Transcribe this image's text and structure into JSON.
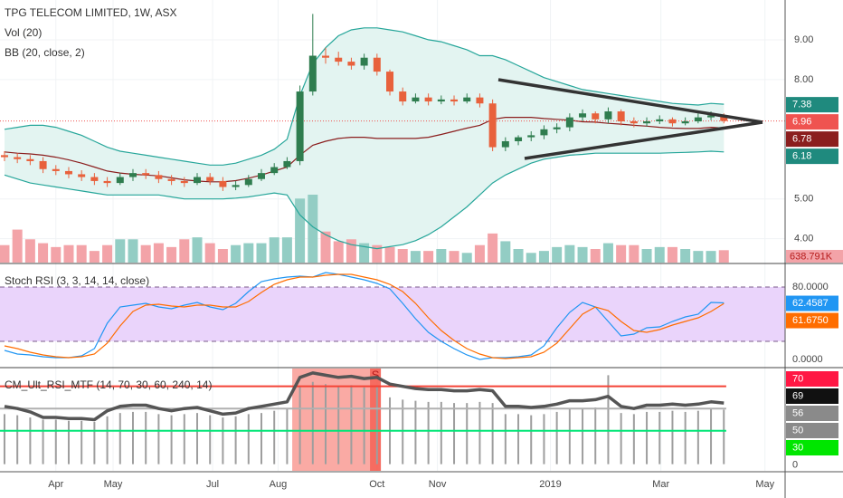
{
  "chart_data": [
    {
      "type": "candlestick",
      "title": "TPG TELECOM LIMITED, 1W, ASX",
      "legend_lines": [
        "Vol (20)",
        "BB (20, close, 2)"
      ],
      "open": [
        6.1,
        6.05,
        6.0,
        5.95,
        5.75,
        5.7,
        5.62,
        5.55,
        5.45,
        5.4,
        5.55,
        5.65,
        5.6,
        5.5,
        5.45,
        5.4,
        5.55,
        5.45,
        5.3,
        5.35,
        5.5,
        5.65,
        5.8,
        5.95,
        7.7,
        8.6,
        8.55,
        8.45,
        8.35,
        8.55,
        8.2,
        7.7,
        7.45,
        7.55,
        7.45,
        7.5,
        7.45,
        7.55,
        7.4,
        6.3,
        6.45,
        6.55,
        6.6,
        6.75,
        6.8,
        7.05,
        7.15,
        7.0,
        7.2,
        6.95,
        6.9,
        6.95,
        7.0,
        6.9,
        6.95,
        7.05,
        7.1
      ],
      "high": [
        6.2,
        6.15,
        6.1,
        6.05,
        5.85,
        5.8,
        5.72,
        5.65,
        5.55,
        5.65,
        5.75,
        5.75,
        5.7,
        5.6,
        5.55,
        5.65,
        5.65,
        5.55,
        5.45,
        5.6,
        5.75,
        5.9,
        6.05,
        7.85,
        9.65,
        8.8,
        8.7,
        8.55,
        8.65,
        8.65,
        8.25,
        7.8,
        7.65,
        7.65,
        7.6,
        7.6,
        7.65,
        7.65,
        7.5,
        6.55,
        6.6,
        6.7,
        6.85,
        6.9,
        7.15,
        7.25,
        7.2,
        7.3,
        7.25,
        7.05,
        7.05,
        7.1,
        7.05,
        7.05,
        7.15,
        7.2,
        7.15
      ],
      "low": [
        5.95,
        5.9,
        5.85,
        5.65,
        5.6,
        5.52,
        5.45,
        5.35,
        5.3,
        5.35,
        5.45,
        5.5,
        5.4,
        5.35,
        5.3,
        5.35,
        5.35,
        5.2,
        5.22,
        5.3,
        5.45,
        5.6,
        5.75,
        5.85,
        7.6,
        8.4,
        8.35,
        8.25,
        8.25,
        8.1,
        7.6,
        7.35,
        7.4,
        7.35,
        7.38,
        7.35,
        7.4,
        7.3,
        6.2,
        6.2,
        6.35,
        6.45,
        6.5,
        6.65,
        6.7,
        6.95,
        6.9,
        6.9,
        6.85,
        6.8,
        6.82,
        6.88,
        6.82,
        6.85,
        6.9,
        6.98,
        6.9
      ],
      "close": [
        6.05,
        6.0,
        5.95,
        5.75,
        5.7,
        5.62,
        5.55,
        5.45,
        5.4,
        5.55,
        5.65,
        5.6,
        5.5,
        5.45,
        5.4,
        5.55,
        5.45,
        5.3,
        5.35,
        5.5,
        5.65,
        5.8,
        5.95,
        7.7,
        8.6,
        8.55,
        8.45,
        8.35,
        8.55,
        8.2,
        7.7,
        7.45,
        7.55,
        7.45,
        7.5,
        7.45,
        7.55,
        7.4,
        6.3,
        6.45,
        6.55,
        6.6,
        6.75,
        6.8,
        7.05,
        7.15,
        7.0,
        7.2,
        6.95,
        6.9,
        6.95,
        7.0,
        6.9,
        6.95,
        7.05,
        7.1,
        6.96
      ],
      "up_color": "#2f7d4f",
      "down_color": "#e8613c",
      "volume": {
        "values": [
          900000,
          1700000,
          1200000,
          1000000,
          800000,
          900000,
          900000,
          600000,
          900000,
          1200000,
          1200000,
          900000,
          1000000,
          800000,
          1200000,
          1300000,
          1000000,
          700000,
          900000,
          1000000,
          1000000,
          1300000,
          1300000,
          3300000,
          3500000,
          1600000,
          1100000,
          1200000,
          1000000,
          900000,
          800000,
          700000,
          600000,
          600000,
          700000,
          600000,
          500000,
          900000,
          1500000,
          1100000,
          700000,
          500000,
          600000,
          800000,
          900000,
          800000,
          700000,
          1000000,
          900000,
          900000,
          700000,
          800000,
          800000,
          700000,
          600000,
          600000,
          638791
        ],
        "last_label": "638.791K",
        "up_color": "#93cdc4",
        "down_color": "#f3a3a8"
      },
      "bands": [
        {
          "color": "#26a69a",
          "values": [
            6.75,
            6.8,
            6.85,
            6.85,
            6.8,
            6.7,
            6.6,
            6.45,
            6.3,
            6.2,
            6.15,
            6.1,
            6.05,
            6.0,
            5.95,
            5.9,
            5.85,
            5.85,
            5.9,
            6.0,
            6.1,
            6.25,
            6.5,
            7.6,
            8.4,
            8.8,
            9.1,
            9.25,
            9.3,
            9.3,
            9.25,
            9.2,
            9.1,
            9.0,
            8.95,
            8.85,
            8.75,
            8.6,
            8.6,
            8.5,
            8.35,
            8.2,
            8.05,
            7.95,
            7.85,
            7.75,
            7.7,
            7.65,
            7.6,
            7.55,
            7.5,
            7.45,
            7.4,
            7.38,
            7.36,
            7.4,
            7.38
          ]
        },
        {
          "color": "#8b1e1e",
          "values": [
            6.18,
            6.15,
            6.13,
            6.1,
            6.05,
            5.98,
            5.9,
            5.8,
            5.7,
            5.65,
            5.62,
            5.6,
            5.58,
            5.53,
            5.48,
            5.45,
            5.43,
            5.43,
            5.46,
            5.52,
            5.6,
            5.7,
            5.8,
            6.1,
            6.35,
            6.45,
            6.52,
            6.55,
            6.55,
            6.52,
            6.52,
            6.52,
            6.52,
            6.55,
            6.62,
            6.7,
            6.78,
            6.85,
            7.0,
            7.05,
            7.05,
            7.05,
            7.02,
            7.0,
            6.98,
            6.94,
            6.93,
            6.9,
            6.88,
            6.85,
            6.83,
            6.8,
            6.78,
            6.77,
            6.77,
            6.8,
            6.78
          ]
        },
        {
          "color": "#26a69a",
          "values": [
            5.6,
            5.5,
            5.4,
            5.35,
            5.3,
            5.25,
            5.2,
            5.15,
            5.1,
            5.1,
            5.1,
            5.1,
            5.1,
            5.05,
            5.0,
            5.0,
            5.0,
            5.0,
            5.02,
            5.05,
            5.1,
            5.15,
            5.1,
            4.6,
            4.3,
            4.1,
            3.95,
            3.85,
            3.8,
            3.75,
            3.8,
            3.85,
            3.95,
            4.1,
            4.3,
            4.55,
            4.8,
            5.1,
            5.4,
            5.6,
            5.75,
            5.9,
            6.0,
            6.05,
            6.1,
            6.12,
            6.15,
            6.15,
            6.15,
            6.15,
            6.15,
            6.15,
            6.16,
            6.17,
            6.18,
            6.2,
            6.18
          ]
        }
      ],
      "band_fill": "#e3f4f1",
      "ylim": [
        3.4,
        10.0
      ],
      "yticks": [
        {
          "value": 9,
          "label": "9.00"
        },
        {
          "value": 8,
          "label": "8.00"
        },
        {
          "value": 5,
          "label": "5.00"
        },
        {
          "value": 4,
          "label": "4.00"
        }
      ],
      "price_labels": [
        {
          "value": 7.38,
          "label": "7.38",
          "color": "#1f8a7e"
        },
        {
          "value": 6.96,
          "label": "6.96",
          "color": "#ef5350"
        },
        {
          "value": 6.78,
          "label": "6.78",
          "color": "#8b1e1e"
        },
        {
          "value": 6.18,
          "label": "6.18",
          "color": "#1f8a7e"
        }
      ],
      "xlim": [
        -0.35,
        60.77
      ],
      "xticks": [
        {
          "value": 4.0,
          "label": "Apr"
        },
        {
          "value": 8.45,
          "label": "May"
        },
        {
          "value": 16.2,
          "label": "Jul"
        },
        {
          "value": 21.3,
          "label": "Aug"
        },
        {
          "value": 29.0,
          "label": "Oct"
        },
        {
          "value": 33.7,
          "label": "Nov"
        },
        {
          "value": 42.5,
          "label": "2019"
        },
        {
          "value": 51.1,
          "label": "Mar"
        },
        {
          "value": 59.2,
          "label": "May"
        }
      ]
    },
    {
      "type": "line",
      "title": "Stoch RSI (3, 3, 14, 14, close)",
      "series": [
        {
          "color": "#2196f3",
          "values": [
            10,
            6,
            5,
            3,
            2,
            2,
            4,
            12,
            40,
            58,
            60,
            62,
            58,
            56,
            60,
            63,
            58,
            55,
            62,
            75,
            86,
            89,
            91,
            92,
            91,
            96,
            94,
            91,
            88,
            84,
            78,
            62,
            45,
            30,
            20,
            12,
            5,
            0,
            2,
            2,
            3,
            5,
            15,
            35,
            52,
            63,
            58,
            42,
            26,
            28,
            35,
            36,
            42,
            47,
            50,
            63,
            62.4587
          ]
        },
        {
          "color": "#ff6d00",
          "values": [
            15,
            12,
            8,
            5,
            3,
            2,
            3,
            6,
            18,
            37,
            53,
            60,
            61,
            59,
            58,
            60,
            60,
            58,
            58,
            64,
            74,
            83,
            88,
            91,
            91,
            93,
            94,
            94,
            91,
            88,
            83,
            75,
            62,
            46,
            32,
            21,
            12,
            6,
            2,
            1,
            2,
            3,
            8,
            18,
            34,
            50,
            58,
            54,
            42,
            32,
            30,
            33,
            38,
            42,
            46,
            53,
            61.675
          ]
        }
      ],
      "ylim": [
        -8,
        105
      ],
      "yticks": [
        {
          "value": 80,
          "label": "80.0000"
        },
        {
          "value": 0,
          "label": "0.0000"
        }
      ],
      "levels": [
        80,
        20
      ],
      "band_color": "#ead4fb",
      "level_color": "#7b5b8b",
      "price_labels": [
        {
          "value": 62.4587,
          "label": "62.4587",
          "color": "#2196f3"
        },
        {
          "value": 61.675,
          "label": "61.6750",
          "color": "#ff6d00"
        }
      ]
    },
    {
      "type": "bar_line",
      "title": "CM_Ult_RSI_MTF (14, 70, 30, 60, 240, 14)",
      "line": {
        "color": "#555555",
        "values": [
          52,
          50,
          47,
          42,
          42,
          41,
          41,
          40,
          48,
          52,
          53,
          53,
          50,
          48,
          50,
          51,
          48,
          45,
          46,
          50,
          52,
          54,
          56,
          78,
          82,
          80,
          78,
          79,
          77,
          78,
          72,
          70,
          68,
          67,
          67,
          66,
          66,
          67,
          66,
          52,
          52,
          51,
          52,
          54,
          57,
          57,
          58,
          61,
          52,
          50,
          53,
          53,
          54,
          53,
          54,
          56,
          55
        ]
      },
      "bars": {
        "color": "#9e9e9e",
        "values": [
          45,
          44,
          42,
          40,
          40,
          39,
          39,
          38,
          43,
          46,
          47,
          47,
          45,
          44,
          45,
          46,
          44,
          42,
          43,
          45,
          46,
          48,
          50,
          70,
          74,
          72,
          70,
          71,
          69,
          70,
          60,
          58,
          57,
          56,
          56,
          55,
          55,
          56,
          55,
          45,
          45,
          44,
          45,
          47,
          50,
          50,
          51,
          80,
          46,
          45,
          47,
          47,
          48,
          47,
          48,
          50,
          49
        ]
      },
      "ylim": [
        -6,
        86
      ],
      "levels": [
        {
          "value": 70,
          "color": "#f44336"
        },
        {
          "value": 50,
          "color": "#b0b0b0"
        },
        {
          "value": 30,
          "color": "#00e676"
        }
      ],
      "signal_zone": {
        "start": 22.4,
        "end": 29.3,
        "label": "S",
        "color": "#f44336"
      },
      "price_labels": [
        {
          "value": 70,
          "label": "70",
          "color": "#ff1744"
        },
        {
          "value": 69,
          "label": "69",
          "color": "#111111"
        },
        {
          "value": 56,
          "label": "56",
          "color": "#8a8a8a"
        },
        {
          "value": 50,
          "label": "50",
          "color": "#8a8a8a"
        },
        {
          "value": 30,
          "label": "30",
          "color": "#00e600"
        },
        {
          "value": 0,
          "label": "0",
          "color": null
        }
      ]
    }
  ]
}
